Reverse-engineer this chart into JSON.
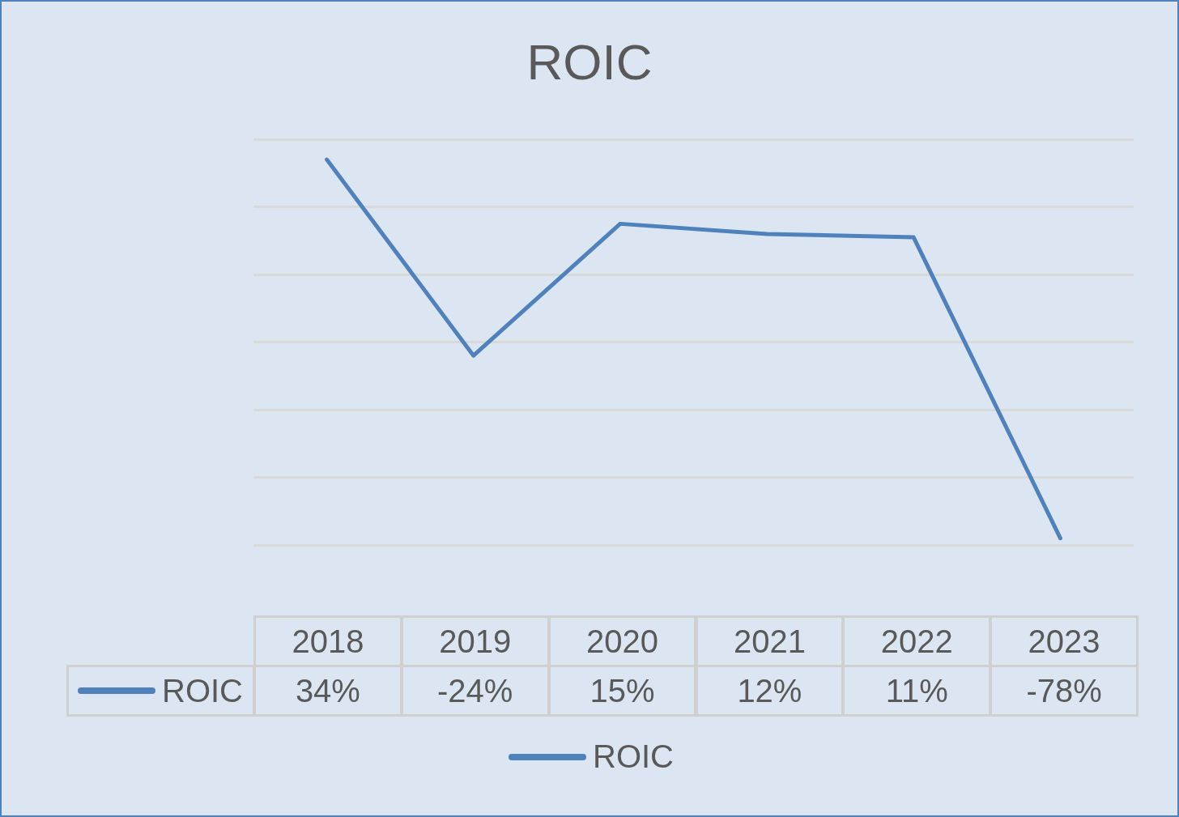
{
  "chart_data": {
    "type": "line",
    "title": "ROIC",
    "categories": [
      "2018",
      "2019",
      "2020",
      "2021",
      "2022",
      "2023"
    ],
    "series": [
      {
        "name": "ROIC",
        "color": "#4f81bd",
        "values": [
          34,
          -24,
          15,
          12,
          11,
          -78
        ],
        "value_labels": [
          "34%",
          "-24%",
          "15%",
          "12%",
          "11%",
          "-78%"
        ]
      }
    ],
    "ylim": [
      -80,
      40
    ],
    "yticks": [
      {
        "value": -80,
        "label": null
      },
      {
        "value": -60,
        "label": null
      },
      {
        "value": -40,
        "label": null
      },
      {
        "value": -20,
        "label": null
      },
      {
        "value": 0,
        "label": null
      },
      {
        "value": 20,
        "label": null
      },
      {
        "value": 40,
        "label": null
      }
    ],
    "grid": "y",
    "legend": "bottom",
    "marker": "none",
    "line_style": "solid"
  }
}
